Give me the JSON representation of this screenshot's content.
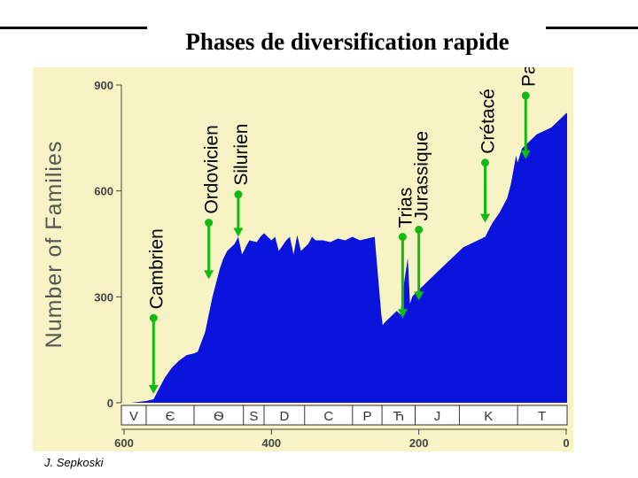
{
  "page": {
    "title": "Phases de diversification rapide",
    "credit": "J. Sepkoski"
  },
  "colors": {
    "fill": "#0a14dc",
    "panel": "#f8f3c4",
    "arrow": "#11bb11"
  },
  "chart_data": {
    "type": "area",
    "title": "Phases de diversification rapide",
    "ylabel": "Number of Families",
    "xlabel": "",
    "x_reversed": true,
    "xlim": [
      600,
      0
    ],
    "ylim": [
      0,
      900
    ],
    "x_ticks": [
      600,
      400,
      200,
      0
    ],
    "y_ticks": [
      0,
      300,
      600,
      900
    ],
    "series": [
      {
        "x": [
          610,
          590,
          570,
          560,
          555,
          545,
          535,
          525,
          515,
          505,
          500,
          490,
          485,
          480,
          470,
          465,
          460,
          450,
          445,
          440,
          435,
          430,
          420,
          415,
          410,
          400,
          395,
          390,
          380,
          375,
          370,
          365,
          360,
          350,
          345,
          340,
          330,
          320,
          310,
          300,
          290,
          280,
          270,
          260,
          251,
          249,
          245,
          240,
          230,
          225,
          220,
          215,
          212,
          209,
          205,
          200,
          190,
          180,
          170,
          160,
          150,
          140,
          130,
          120,
          110,
          100,
          90,
          80,
          75,
          68,
          66,
          60,
          50,
          40,
          30,
          20,
          10,
          0
        ],
        "values": [
          0,
          0,
          5,
          10,
          30,
          70,
          100,
          120,
          135,
          140,
          145,
          200,
          250,
          300,
          380,
          410,
          430,
          450,
          470,
          420,
          440,
          460,
          455,
          470,
          480,
          460,
          470,
          430,
          460,
          470,
          420,
          475,
          430,
          450,
          470,
          460,
          460,
          455,
          465,
          460,
          470,
          460,
          465,
          470,
          250,
          220,
          230,
          240,
          260,
          250,
          340,
          410,
          280,
          300,
          310,
          320,
          340,
          360,
          380,
          400,
          420,
          440,
          450,
          460,
          470,
          510,
          540,
          580,
          620,
          700,
          680,
          720,
          740,
          760,
          770,
          780,
          800,
          820
        ]
      }
    ],
    "period_axis": [
      {
        "label": "V",
        "x0": 610,
        "x1": 570
      },
      {
        "label": "Є",
        "x0": 570,
        "x1": 505
      },
      {
        "label": "Ѳ",
        "x0": 505,
        "x1": 438
      },
      {
        "label": "S",
        "x0": 438,
        "x1": 410
      },
      {
        "label": "D",
        "x0": 410,
        "x1": 355
      },
      {
        "label": "C",
        "x0": 355,
        "x1": 290
      },
      {
        "label": "P",
        "x0": 290,
        "x1": 250
      },
      {
        "label": "Ћ",
        "x0": 250,
        "x1": 205
      },
      {
        "label": "J",
        "x0": 205,
        "x1": 145
      },
      {
        "label": "K",
        "x0": 145,
        "x1": 66
      },
      {
        "label": "T",
        "x0": 66,
        "x1": 0
      }
    ],
    "annotations": [
      {
        "label": "Cambrien",
        "lines": [
          "Cambrien"
        ],
        "x": 560,
        "y_from": 240,
        "y_to": 25
      },
      {
        "label": "Ordovicien",
        "lines": [
          "Ordovicien"
        ],
        "x": 485,
        "y_from": 510,
        "y_to": 350
      },
      {
        "label": "Silurien",
        "lines": [
          "Silurien"
        ],
        "x": 445,
        "y_from": 590,
        "y_to": 470
      },
      {
        "label": "Trias",
        "lines": [
          "Trias"
        ],
        "x": 222,
        "y_from": 470,
        "y_to": 240
      },
      {
        "label": "Jurassique",
        "lines": [
          "Jurassique"
        ],
        "x": 200,
        "y_from": 490,
        "y_to": 290
      },
      {
        "label": "Crétacé",
        "lines": [
          "Crétacé"
        ],
        "x": 110,
        "y_from": 680,
        "y_to": 510
      },
      {
        "label": "Paléocène",
        "lines": [
          "Paléocène"
        ],
        "x": 55,
        "y_from": 870,
        "y_to": 690
      }
    ]
  }
}
